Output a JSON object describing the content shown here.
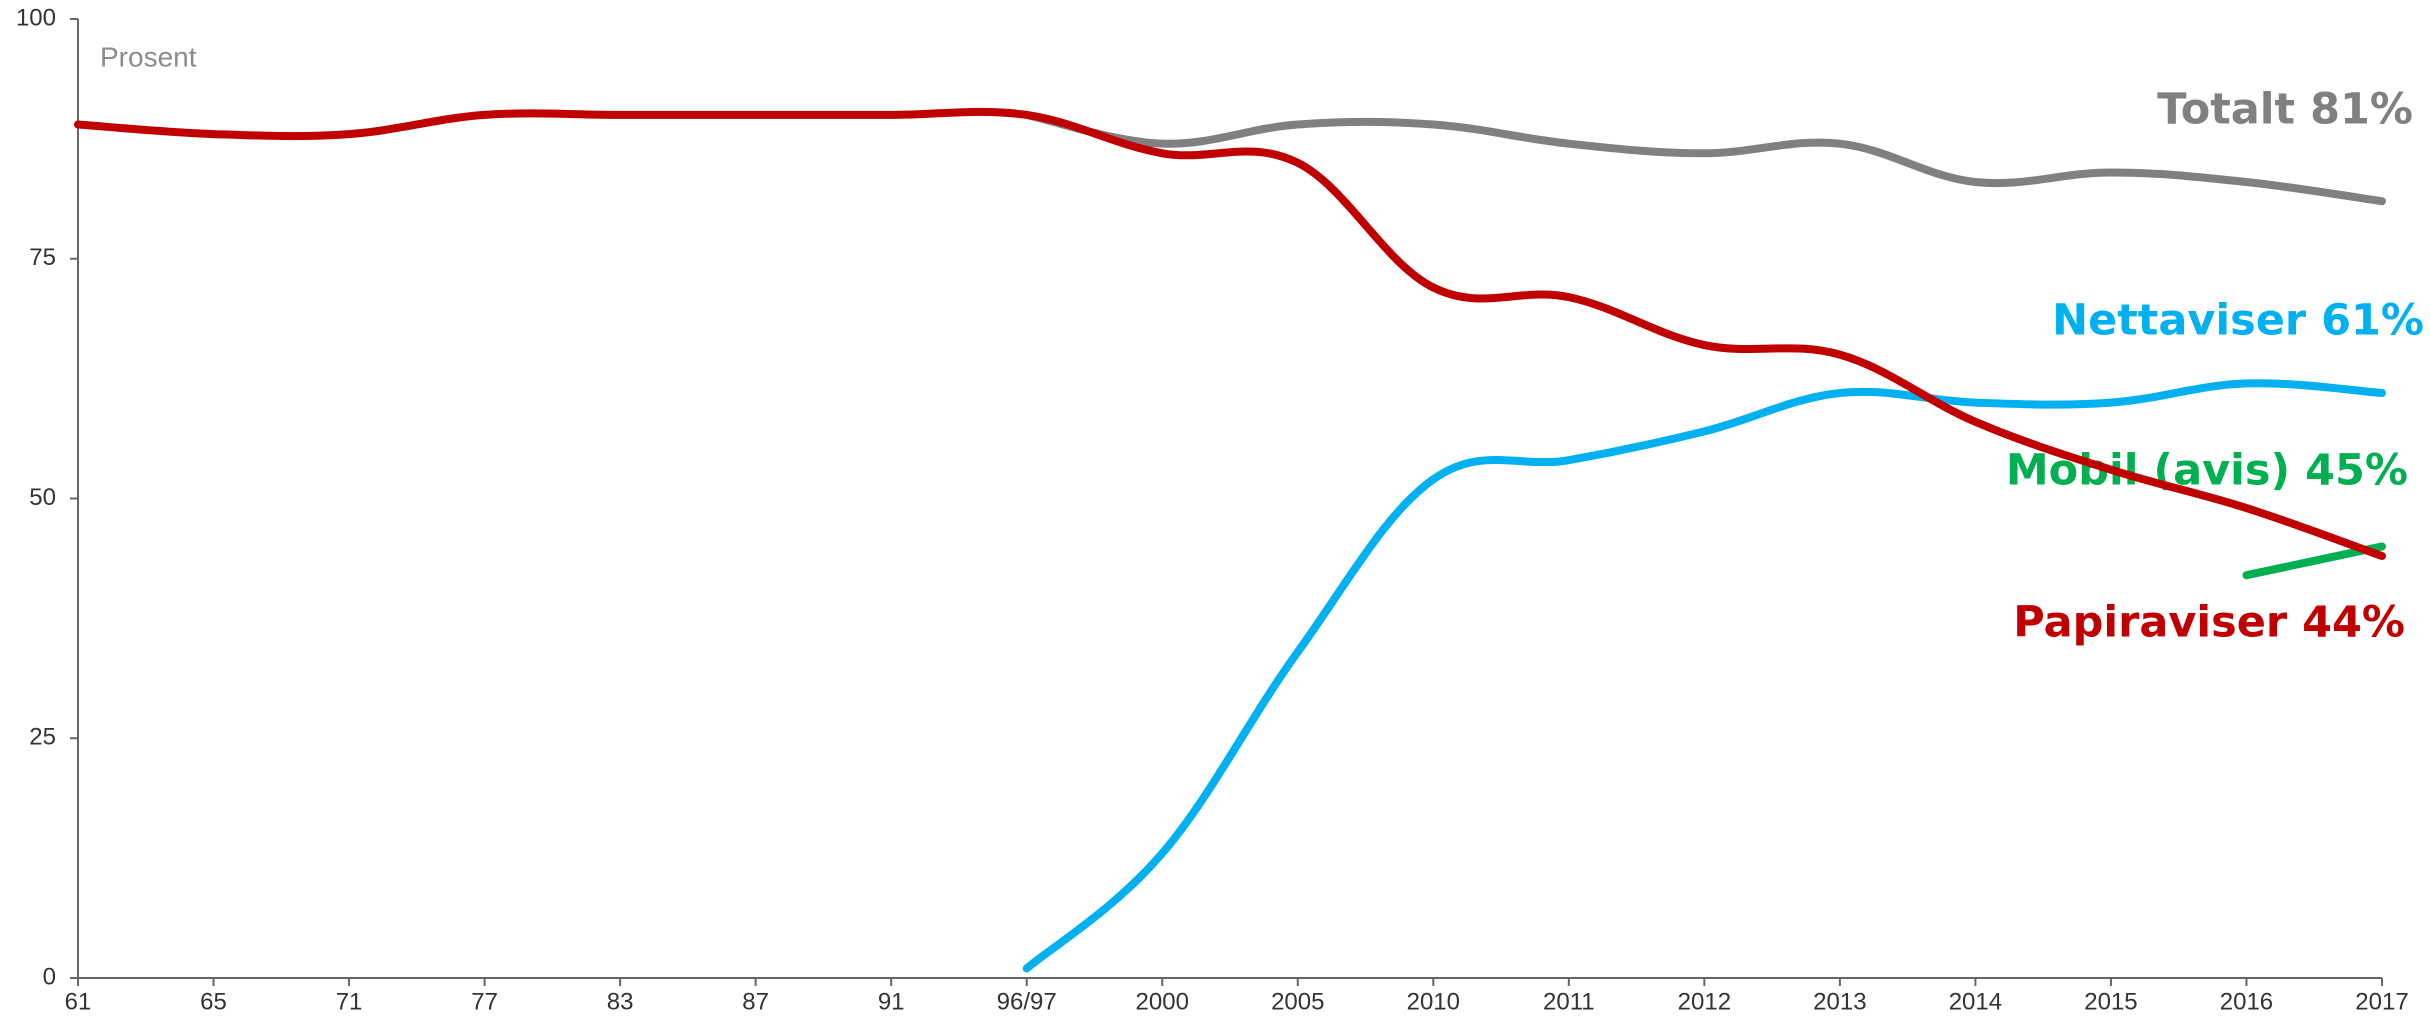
{
  "chart_data": {
    "type": "line",
    "annotation": "Prosent",
    "categories": [
      "61",
      "65",
      "71",
      "77",
      "83",
      "87",
      "91",
      "96/97",
      "2000",
      "2005",
      "2010",
      "2011",
      "2012",
      "2013",
      "2014",
      "2015",
      "2016",
      "2017"
    ],
    "series": [
      {
        "name": "Totalt 81%",
        "color": "#808080",
        "values": [
          null,
          null,
          null,
          null,
          null,
          null,
          null,
          90,
          87,
          89,
          89,
          87,
          86,
          87,
          83,
          84,
          83,
          81
        ]
      },
      {
        "name": "Nettaviser 61%",
        "color": "#00b0f0",
        "values": [
          null,
          null,
          null,
          null,
          null,
          null,
          null,
          1,
          13,
          34,
          52,
          54,
          57,
          61,
          60,
          60,
          62,
          61
        ]
      },
      {
        "name": "Mobil (avis) 45%",
        "color": "#00b050",
        "values": [
          null,
          null,
          null,
          null,
          null,
          null,
          null,
          null,
          null,
          null,
          null,
          null,
          null,
          null,
          null,
          null,
          42,
          45
        ]
      },
      {
        "name": "Papiraviser 44%",
        "color": "#c00000",
        "values": [
          89,
          88,
          88,
          90,
          90,
          90,
          90,
          90,
          86,
          85,
          72,
          71,
          66,
          65,
          58,
          53,
          49,
          44
        ]
      }
    ],
    "ylim": [
      0,
      100
    ],
    "yticks": [
      0,
      25,
      50,
      75,
      100
    ]
  }
}
